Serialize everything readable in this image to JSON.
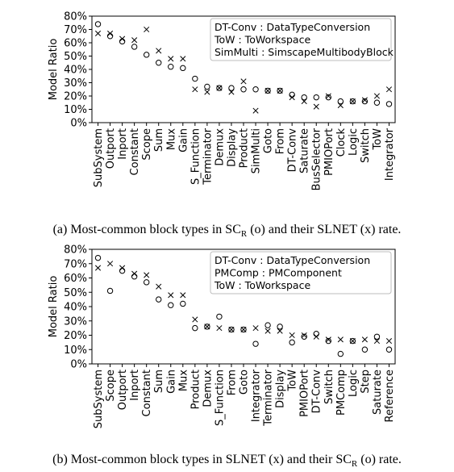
{
  "chart_data": [
    {
      "type": "scatter",
      "ylabel": "Model Ratio",
      "ylim": [
        0,
        80
      ],
      "yticks": [
        "0%",
        "10%",
        "20%",
        "30%",
        "40%",
        "50%",
        "60%",
        "70%",
        "80%"
      ],
      "categories": [
        "SubSystem",
        "Outport",
        "Inport",
        "Constant",
        "Scope",
        "Sum",
        "Mux",
        "Gain",
        "S_Function",
        "Terminator",
        "Demux",
        "Display",
        "Product",
        "SimMulti",
        "Goto",
        "From",
        "DT-Conv",
        "Saturate",
        "BusSelector",
        "PMIOPort",
        "Clock",
        "Logic",
        "Switch",
        "ToW",
        "Integrator"
      ],
      "series": [
        {
          "marker": "o",
          "values": [
            74,
            65,
            61,
            57,
            51,
            45,
            42,
            41,
            33,
            27,
            26,
            26,
            25,
            25,
            24,
            24,
            21,
            19,
            19,
            19,
            16,
            16,
            16,
            15,
            14
          ]
        },
        {
          "marker": "x",
          "values": [
            67,
            67,
            63,
            62,
            70,
            54,
            48,
            48,
            25,
            23,
            26,
            23,
            31,
            9,
            24,
            24,
            19,
            16,
            12,
            20,
            13,
            16,
            17,
            20,
            25
          ]
        }
      ],
      "legend": [
        "DT-Conv : DataTypeConversion",
        "ToW : ToWorkspace",
        "SimMulti : SimscapeMultibodyBlock"
      ],
      "legend_position": "top-right"
    },
    {
      "type": "scatter",
      "ylabel": "Model Ratio",
      "ylim": [
        0,
        80
      ],
      "yticks": [
        "0%",
        "10%",
        "20%",
        "30%",
        "40%",
        "50%",
        "60%",
        "70%",
        "80%"
      ],
      "categories": [
        "SubSystem",
        "Scope",
        "Outport",
        "Inport",
        "Constant",
        "Sum",
        "Gain",
        "Mux",
        "Product",
        "Demux",
        "S_Function",
        "From",
        "Goto",
        "Integrator",
        "Terminator",
        "Display",
        "ToW",
        "PMIOPort",
        "DT-Conv",
        "Switch",
        "PMComp",
        "Logic",
        "Step",
        "Saturate",
        "Reference"
      ],
      "series": [
        {
          "marker": "x",
          "values": [
            67,
            70,
            67,
            63,
            62,
            54,
            48,
            48,
            31,
            26,
            25,
            24,
            24,
            25,
            23,
            23,
            20,
            20,
            19,
            17,
            17,
            16,
            17,
            16,
            16
          ]
        },
        {
          "marker": "o",
          "values": [
            74,
            51,
            65,
            61,
            57,
            45,
            41,
            42,
            25,
            26,
            33,
            24,
            24,
            14,
            27,
            26,
            15,
            19,
            21,
            16,
            7,
            16,
            10,
            19,
            10
          ]
        }
      ],
      "legend": [
        "DT-Conv : DataTypeConversion",
        "PMComp : PMComponent",
        "ToW : ToWorkspace"
      ],
      "legend_position": "top-right"
    }
  ],
  "captions": {
    "a_prefix": "(a) Most-common block types in SC",
    "a_sub": "R",
    "a_suffix": " (o) and their SLNET (x) rate.",
    "b_prefix": "(b) Most-common block types in SLNET (x) and their SC",
    "b_sub": "R",
    "b_suffix": " (o) rate."
  }
}
